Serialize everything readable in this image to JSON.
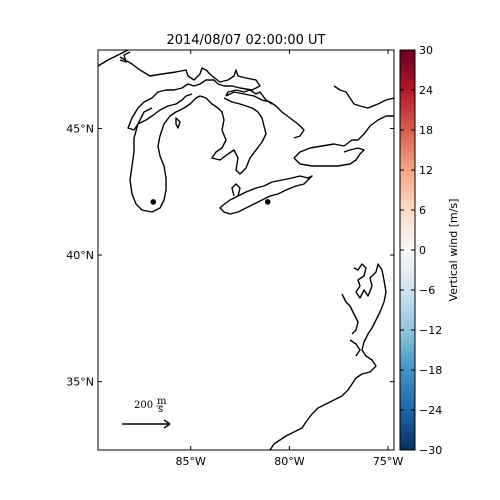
{
  "title": "2014/08/07 02:00:00 UT",
  "map": {
    "lon_labels": [
      "85°W",
      "80°W",
      "75°W"
    ],
    "lat_labels": [
      "45°N",
      "40°N",
      "35°N"
    ],
    "lon_ticks": [
      -85,
      -80,
      -75
    ],
    "lat_ticks": [
      45,
      40,
      35
    ],
    "lon_range": [
      -89.7,
      -74.7
    ],
    "lat_range": [
      32.3,
      48.1
    ],
    "stations": [
      {
        "lon": -86.9,
        "lat": 42.1
      },
      {
        "lon": -81.1,
        "lat": 42.1
      }
    ],
    "reference_vector": {
      "label": "200",
      "unit_num": "m",
      "unit_den": "s"
    }
  },
  "colorbar": {
    "label": "Vertical wind [m/s]",
    "ticks": [
      "30",
      "24",
      "18",
      "12",
      "6",
      "0",
      "−6",
      "−12",
      "−18",
      "−24",
      "−30"
    ],
    "min": -30,
    "max": 30,
    "colormap": "RdBu_r",
    "colors": [
      "#053061",
      "#2166ac",
      "#4393c3",
      "#92c5de",
      "#d1e5f0",
      "#f7f7f7",
      "#fddbc7",
      "#f4a582",
      "#d6604d",
      "#b2182b",
      "#67001f"
    ]
  }
}
